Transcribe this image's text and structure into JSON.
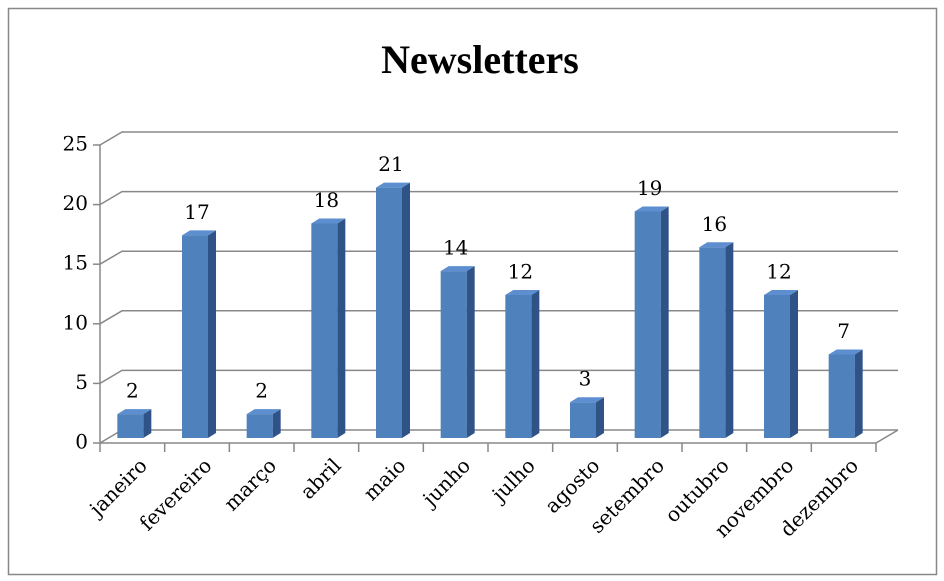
{
  "chart_data": {
    "type": "bar3d",
    "title": "Newsletters",
    "categories": [
      "janeiro",
      "fevereiro",
      "março",
      "abril",
      "maio",
      "junho",
      "julho",
      "agosto",
      "setembro",
      "outubro",
      "novembro",
      "dezembro"
    ],
    "values": [
      2,
      17,
      2,
      18,
      21,
      14,
      12,
      3,
      19,
      16,
      12,
      7
    ],
    "color": "#4f81bd",
    "ylim": [
      0,
      25
    ],
    "yticks": [
      0,
      5,
      10,
      15,
      20,
      25
    ],
    "grid": true
  }
}
